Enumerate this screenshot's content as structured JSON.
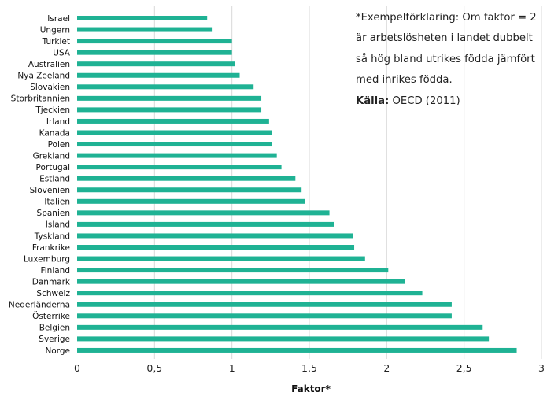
{
  "chart_data": {
    "type": "bar",
    "orientation": "horizontal",
    "categories": [
      "Israel",
      "Ungern",
      "Turkiet",
      "USA",
      "Australien",
      "Nya Zeeland",
      "Slovakien",
      "Storbritannien",
      "Tjeckien",
      "Irland",
      "Kanada",
      "Polen",
      "Grekland",
      "Portugal",
      "Estland",
      "Slovenien",
      "Italien",
      "Spanien",
      "Island",
      "Tyskland",
      "Frankrike",
      "Luxemburg",
      "Finland",
      "Danmark",
      "Schweiz",
      "Nederländerna",
      "Österrike",
      "Belgien",
      "Sverige",
      "Norge"
    ],
    "values": [
      0.84,
      0.87,
      1.0,
      1.0,
      1.02,
      1.05,
      1.14,
      1.19,
      1.19,
      1.24,
      1.26,
      1.26,
      1.29,
      1.32,
      1.41,
      1.45,
      1.47,
      1.63,
      1.66,
      1.78,
      1.79,
      1.86,
      2.01,
      2.12,
      2.23,
      2.42,
      2.42,
      2.62,
      2.66,
      2.84
    ],
    "xlim": [
      0,
      3
    ],
    "xticks": [
      "0",
      "0,5",
      "1",
      "1,5",
      "2",
      "2,5",
      "3"
    ],
    "xlabel": "Faktor*",
    "ylabel": "",
    "grid": true,
    "bar_color": "#1fb294",
    "grid_color": "#d9d9d9"
  },
  "note": {
    "text": "*Exempelförklaring: Om faktor = 2 är arbetslösheten i landet dubbelt så hög bland utrikes födda jämfört med inrikes födda.",
    "source_label": "Källa:",
    "source_text": " OECD (2011)"
  }
}
